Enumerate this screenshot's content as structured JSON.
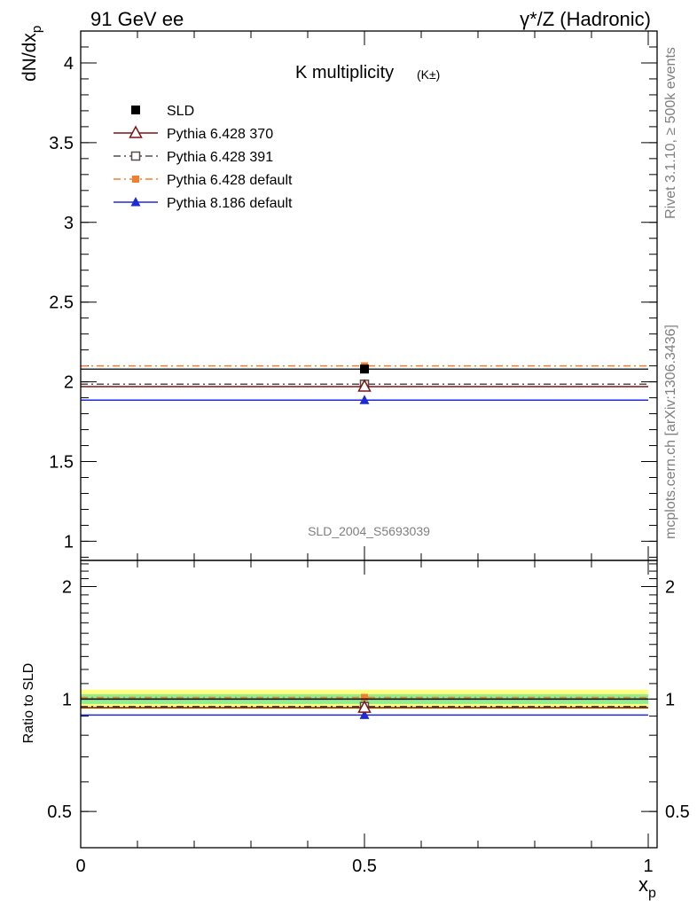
{
  "header": {
    "left": "91 GeV ee",
    "right": "γ*/Z (Hadronic)"
  },
  "side_labels": {
    "rivet": "Rivet 3.1.10, ≥ 500k events",
    "mcplots": "mcplots.cern.ch [arXiv:1306.3436]"
  },
  "chart_data": [
    {
      "type": "scatter",
      "panel": "main",
      "title_main": "K multiplicity",
      "title_sub": "(K±)",
      "ylabel": "dN/dx_p",
      "watermark": "SLD_2004_S5693039",
      "xlim": [
        0,
        1
      ],
      "ylim": [
        0.88,
        4.2
      ],
      "y_ticks": [
        1,
        1.5,
        2,
        2.5,
        3,
        3.5,
        4
      ],
      "y_tick_labels": [
        "1",
        "1.5",
        "2",
        "2.5",
        "3",
        "3.5",
        "4"
      ],
      "series": [
        {
          "name": "SLD",
          "x": 0.5,
          "xlow": 0.0,
          "xhigh": 1.0,
          "y": 2.08,
          "color": "#000000",
          "marker": "square",
          "line": "none"
        },
        {
          "name": "Pythia 6.428 370",
          "x": 0.5,
          "xlow": 0.0,
          "xhigh": 1.0,
          "y": 1.97,
          "color": "#7b1416",
          "marker": "triangle-open",
          "line": "solid"
        },
        {
          "name": "Pythia 6.428 391",
          "x": 0.5,
          "xlow": 0.0,
          "xhigh": 1.0,
          "y": 1.985,
          "color": "#5b4a4a",
          "marker": "square-open",
          "line": "dashdot"
        },
        {
          "name": "Pythia 6.428 default",
          "x": 0.5,
          "xlow": 0.0,
          "xhigh": 1.0,
          "y": 2.1,
          "color": "#f57e2e",
          "marker": "square-small",
          "line": "dashdot"
        },
        {
          "name": "Pythia 8.186 default",
          "x": 0.5,
          "xlow": 0.0,
          "xhigh": 1.0,
          "y": 1.885,
          "color": "#1f2ad6",
          "marker": "triangle",
          "line": "solid"
        }
      ]
    },
    {
      "type": "scatter",
      "panel": "ratio",
      "ylabel": "Ratio to SLD",
      "xlabel": "x_p",
      "xlim": [
        0,
        1
      ],
      "ylim": [
        0.4,
        2.35
      ],
      "y_ticks": [
        0.5,
        1,
        2
      ],
      "y_tick_labels": [
        "0.5",
        "1",
        "2"
      ],
      "x_ticks": [
        0,
        0.5,
        1
      ],
      "x_tick_labels": [
        "0",
        "0.5",
        "1"
      ],
      "band_yellow": [
        0.94,
        1.06
      ],
      "band_green": [
        0.97,
        1.03
      ],
      "series": [
        {
          "name": "SLD",
          "y": 1.0,
          "color": "#000000",
          "marker": "none",
          "line": "solid"
        },
        {
          "name": "Pythia 6.428 370",
          "y": 0.948,
          "color": "#7b1416",
          "marker": "triangle-open",
          "line": "solid"
        },
        {
          "name": "Pythia 6.428 391",
          "y": 0.955,
          "color": "#5b4a4a",
          "marker": "square-open",
          "line": "dashdot"
        },
        {
          "name": "Pythia 6.428 default",
          "y": 1.01,
          "color": "#f57e2e",
          "marker": "square-small",
          "line": "dashdot"
        },
        {
          "name": "Pythia 8.186 default",
          "y": 0.906,
          "color": "#1f2ad6",
          "marker": "triangle",
          "line": "solid"
        }
      ]
    }
  ]
}
